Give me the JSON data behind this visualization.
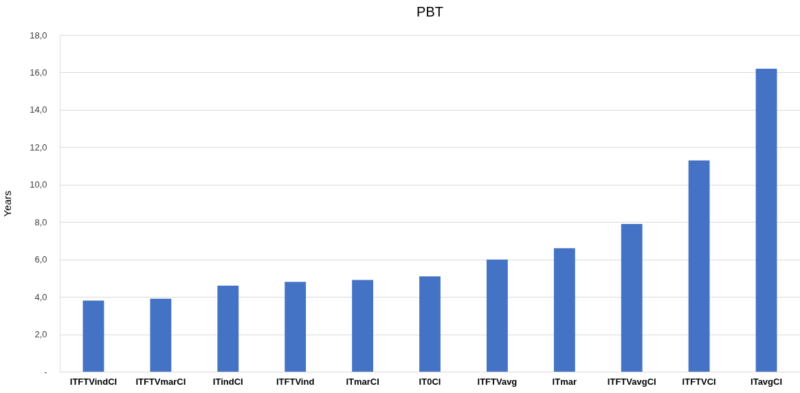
{
  "chart_data": {
    "type": "bar",
    "title": "PBT",
    "ylabel": "Years",
    "categories": [
      "ITFTVindCI",
      "ITFTVmarCI",
      "ITindCI",
      "ITFTVind",
      "ITmarCI",
      "IT0CI",
      "ITFTVavg",
      "ITmar",
      "ITFTVavgCI",
      "ITFTVCI",
      "ITavgCI"
    ],
    "values": [
      3.8,
      3.9,
      4.6,
      4.8,
      4.9,
      5.1,
      6.0,
      6.6,
      7.9,
      11.3,
      16.2
    ],
    "color": "#4472c4",
    "ylim": [
      0,
      18
    ],
    "yticks": [
      {
        "value": 0,
        "label": "-"
      },
      {
        "value": 2,
        "label": "2,0"
      },
      {
        "value": 4,
        "label": "4,0"
      },
      {
        "value": 6,
        "label": "6,0"
      },
      {
        "value": 8,
        "label": "8,0"
      },
      {
        "value": 10,
        "label": "10,0"
      },
      {
        "value": 12,
        "label": "12,0"
      },
      {
        "value": 14,
        "label": "14,0"
      },
      {
        "value": 16,
        "label": "16,0"
      },
      {
        "value": 18,
        "label": "18,0"
      }
    ],
    "grid": "y"
  }
}
